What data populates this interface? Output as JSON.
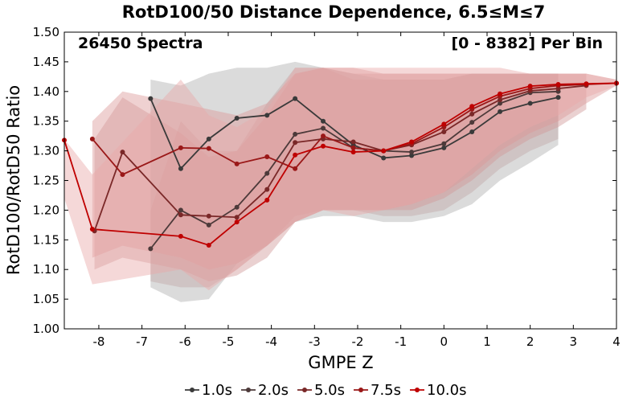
{
  "chart_data": {
    "type": "line",
    "title": "RotD100/50 Distance Dependence, 6.5≤M≤7",
    "xlabel": "GMPE Z",
    "ylabel": "RotD100/RotD50 Ratio",
    "xlim": [
      -8.8,
      4
    ],
    "ylim": [
      1.0,
      1.5
    ],
    "xticks": [
      -8,
      -7,
      -6,
      -5,
      -4,
      -3,
      -2,
      -1,
      0,
      1,
      2,
      3,
      4
    ],
    "yticks": [
      1.0,
      1.05,
      1.1,
      1.15,
      1.2,
      1.25,
      1.3,
      1.35,
      1.4,
      1.45,
      1.5
    ],
    "annotations": {
      "left": "26450 Spectra",
      "right": "[0 - 8382] Per Bin"
    },
    "legend_position": "bottom",
    "grid": false,
    "series": [
      {
        "name": "1.0s",
        "color": "#3a3a3a",
        "band_color": "#b0b0b0",
        "x": [
          -6.8,
          -6.1,
          -5.45,
          -4.8,
          -4.1,
          -3.45,
          -2.8,
          -2.1,
          -1.4,
          -0.75,
          0,
          0.65,
          1.3,
          2,
          2.65
        ],
        "y": [
          1.388,
          1.27,
          1.32,
          1.355,
          1.36,
          1.388,
          1.35,
          1.31,
          1.288,
          1.292,
          1.305,
          1.332,
          1.366,
          1.38,
          1.39
        ],
        "lower": [
          1.07,
          1.045,
          1.05,
          1.11,
          1.14,
          1.18,
          1.19,
          1.19,
          1.18,
          1.18,
          1.19,
          1.21,
          1.25,
          1.28,
          1.31
        ],
        "upper": [
          1.42,
          1.41,
          1.43,
          1.44,
          1.44,
          1.45,
          1.44,
          1.43,
          1.42,
          1.42,
          1.42,
          1.43,
          1.43,
          1.43,
          1.43
        ]
      },
      {
        "name": "2.0s",
        "color": "#4d3a3a",
        "band_color": "#c0a8a8",
        "x": [
          -6.8,
          -6.1,
          -5.45,
          -4.8,
          -4.1,
          -3.45,
          -2.8,
          -2.1,
          -1.4,
          -0.75,
          0,
          0.65,
          1.3,
          2,
          2.65
        ],
        "y": [
          1.135,
          1.2,
          1.175,
          1.205,
          1.262,
          1.328,
          1.338,
          1.305,
          1.3,
          1.298,
          1.312,
          1.348,
          1.38,
          1.398,
          1.4
        ],
        "lower": [
          1.08,
          1.07,
          1.07,
          1.1,
          1.14,
          1.19,
          1.2,
          1.2,
          1.19,
          1.19,
          1.2,
          1.23,
          1.27,
          1.3,
          1.32
        ],
        "upper": [
          1.2,
          1.35,
          1.3,
          1.3,
          1.38,
          1.44,
          1.44,
          1.42,
          1.42,
          1.42,
          1.42,
          1.43,
          1.43,
          1.43,
          1.43
        ]
      },
      {
        "name": "5.0s",
        "color": "#7a2828",
        "band_color": "#d09a9a",
        "x": [
          -8.1,
          -7.45,
          -6.1,
          -5.45,
          -4.8,
          -4.1,
          -3.45,
          -2.8,
          -2.1,
          -1.4,
          -0.75,
          0,
          0.65,
          1.3,
          2,
          2.65,
          3.3
        ],
        "y": [
          1.165,
          1.298,
          1.192,
          1.19,
          1.188,
          1.235,
          1.314,
          1.32,
          1.315,
          1.3,
          1.31,
          1.332,
          1.362,
          1.386,
          1.401,
          1.405,
          1.41
        ],
        "lower": [
          1.1,
          1.12,
          1.1,
          1.08,
          1.09,
          1.12,
          1.18,
          1.2,
          1.2,
          1.2,
          1.2,
          1.22,
          1.25,
          1.29,
          1.32,
          1.34,
          1.37
        ],
        "upper": [
          1.32,
          1.39,
          1.33,
          1.29,
          1.3,
          1.36,
          1.43,
          1.44,
          1.43,
          1.43,
          1.43,
          1.43,
          1.43,
          1.43,
          1.43,
          1.43,
          1.43
        ]
      },
      {
        "name": "7.5s",
        "color": "#9a1818",
        "band_color": "#dc9a9a",
        "x": [
          -8.15,
          -7.45,
          -6.1,
          -5.45,
          -4.8,
          -4.1,
          -3.45,
          -2.8,
          -2.1,
          -1.4,
          -0.75,
          0,
          0.65,
          1.3,
          2,
          2.65,
          3.3,
          4
        ],
        "y": [
          1.32,
          1.26,
          1.305,
          1.304,
          1.278,
          1.29,
          1.27,
          1.325,
          1.305,
          1.3,
          1.312,
          1.34,
          1.37,
          1.392,
          1.405,
          1.41,
          1.412,
          1.414
        ],
        "lower": [
          1.12,
          1.14,
          1.12,
          1.1,
          1.11,
          1.14,
          1.18,
          1.2,
          1.2,
          1.2,
          1.21,
          1.23,
          1.26,
          1.3,
          1.33,
          1.35,
          1.38,
          1.41
        ],
        "upper": [
          1.35,
          1.4,
          1.38,
          1.37,
          1.36,
          1.38,
          1.43,
          1.44,
          1.44,
          1.43,
          1.43,
          1.43,
          1.43,
          1.43,
          1.43,
          1.43,
          1.43,
          1.42
        ]
      },
      {
        "name": "10.0s",
        "color": "#bf0000",
        "band_color": "#e8a8a8",
        "x": [
          -8.8,
          -8.15,
          -6.1,
          -5.45,
          -4.8,
          -4.1,
          -3.45,
          -2.8,
          -2.1,
          -1.4,
          -0.75,
          0,
          0.65,
          1.3,
          2,
          2.65,
          3.3,
          4
        ],
        "y": [
          1.318,
          1.168,
          1.156,
          1.141,
          1.18,
          1.217,
          1.293,
          1.308,
          1.298,
          1.3,
          1.315,
          1.345,
          1.375,
          1.396,
          1.409,
          1.412,
          1.413,
          1.414
        ],
        "lower": [
          1.22,
          1.075,
          1.1,
          1.065,
          1.1,
          1.14,
          1.18,
          1.2,
          1.19,
          1.2,
          1.21,
          1.23,
          1.27,
          1.31,
          1.34,
          1.36,
          1.39,
          1.41
        ],
        "upper": [
          1.32,
          1.26,
          1.42,
          1.36,
          1.34,
          1.37,
          1.44,
          1.44,
          1.44,
          1.44,
          1.44,
          1.44,
          1.44,
          1.44,
          1.43,
          1.43,
          1.43,
          1.42
        ]
      }
    ]
  }
}
